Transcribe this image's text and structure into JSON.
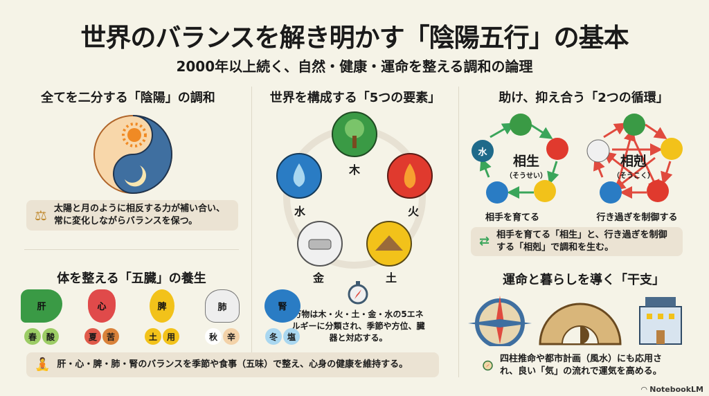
{
  "header": {
    "title": "世界のバランスを解き明かす「陰陽五行」の基本",
    "subtitle": "2000年以上続く、自然・健康・運命を整える調和の論理"
  },
  "yinyang": {
    "heading": "全てを二分する「陰陽」の調和",
    "note": "太陽と月のように相反する力が補い合い、常に変化しながらバランスを保つ。",
    "icons": [
      "sun-icon",
      "moon-icon",
      "scales-icon"
    ],
    "colors": {
      "yang": "#f8d7aa",
      "yin": "#3f6fa0"
    }
  },
  "elements": {
    "heading": "世界を構成する「5つの要素」",
    "labels": {
      "wood": "木",
      "fire": "火",
      "earth": "土",
      "metal": "金",
      "water": "水"
    },
    "colors": {
      "wood": "#3a9a45",
      "fire": "#e03a2e",
      "earth": "#f2c21a",
      "metal": "#f0f0f0",
      "water": "#2a7cc4"
    },
    "note": "万物は木・火・土・金・水の5エネルギーに分類され、季節や方位、臓器と対応する。"
  },
  "cycles": {
    "heading": "助け、抑え合う「2つの循環」",
    "sosei": {
      "title": "相生",
      "reading": "（そうせい）",
      "caption": "相手を育てる",
      "water_label": "水"
    },
    "sokoku": {
      "title": "相剋",
      "reading": "（そうこく）",
      "caption": "行き過ぎを制御する"
    },
    "note": "相手を育てる「相生」と、行き過ぎを制御する「相剋」で調和を生む。",
    "colors": {
      "sosei": "#3aa55a",
      "sokoku": "#e04a3e"
    }
  },
  "organs": {
    "heading": "体を整える「五臓」の養生",
    "items": [
      {
        "name": "肝",
        "season": "春",
        "taste": "酸",
        "color": "#3a9a45",
        "c1": "#9ccc65",
        "c2": "#9ccc65"
      },
      {
        "name": "心",
        "season": "夏",
        "taste": "苦",
        "color": "#e04a4a",
        "c1": "#e05a4a",
        "c2": "#d9823a"
      },
      {
        "name": "脾",
        "season": "土",
        "taste": "用",
        "color": "#f2c21a",
        "c1": "#f2c21a",
        "c2": "#f2c21a"
      },
      {
        "name": "肺",
        "season": "秋",
        "taste": "辛",
        "color": "#eeeeee",
        "c1": "#ffffff",
        "c2": "#f3d2a8"
      },
      {
        "name": "腎",
        "season": "冬",
        "taste": "塩",
        "color": "#2a7cc4",
        "c1": "#a9d7f0",
        "c2": "#a9d7f0"
      }
    ],
    "note": "肝・心・脾・肺・腎のバランスを季節や食事（五味）で整え、心身の健康を維持する。"
  },
  "eto": {
    "heading": "運命と暮らしを導く「干支」",
    "note": "四柱推命や都市計画（風水）にも応用され、良い「気」の流れで運気を高める。",
    "icons": [
      "compass-rose-icon",
      "zodiac-wheel-icon",
      "building-icon",
      "compass-icon"
    ]
  },
  "footer": {
    "brand": "NotebookLM"
  }
}
